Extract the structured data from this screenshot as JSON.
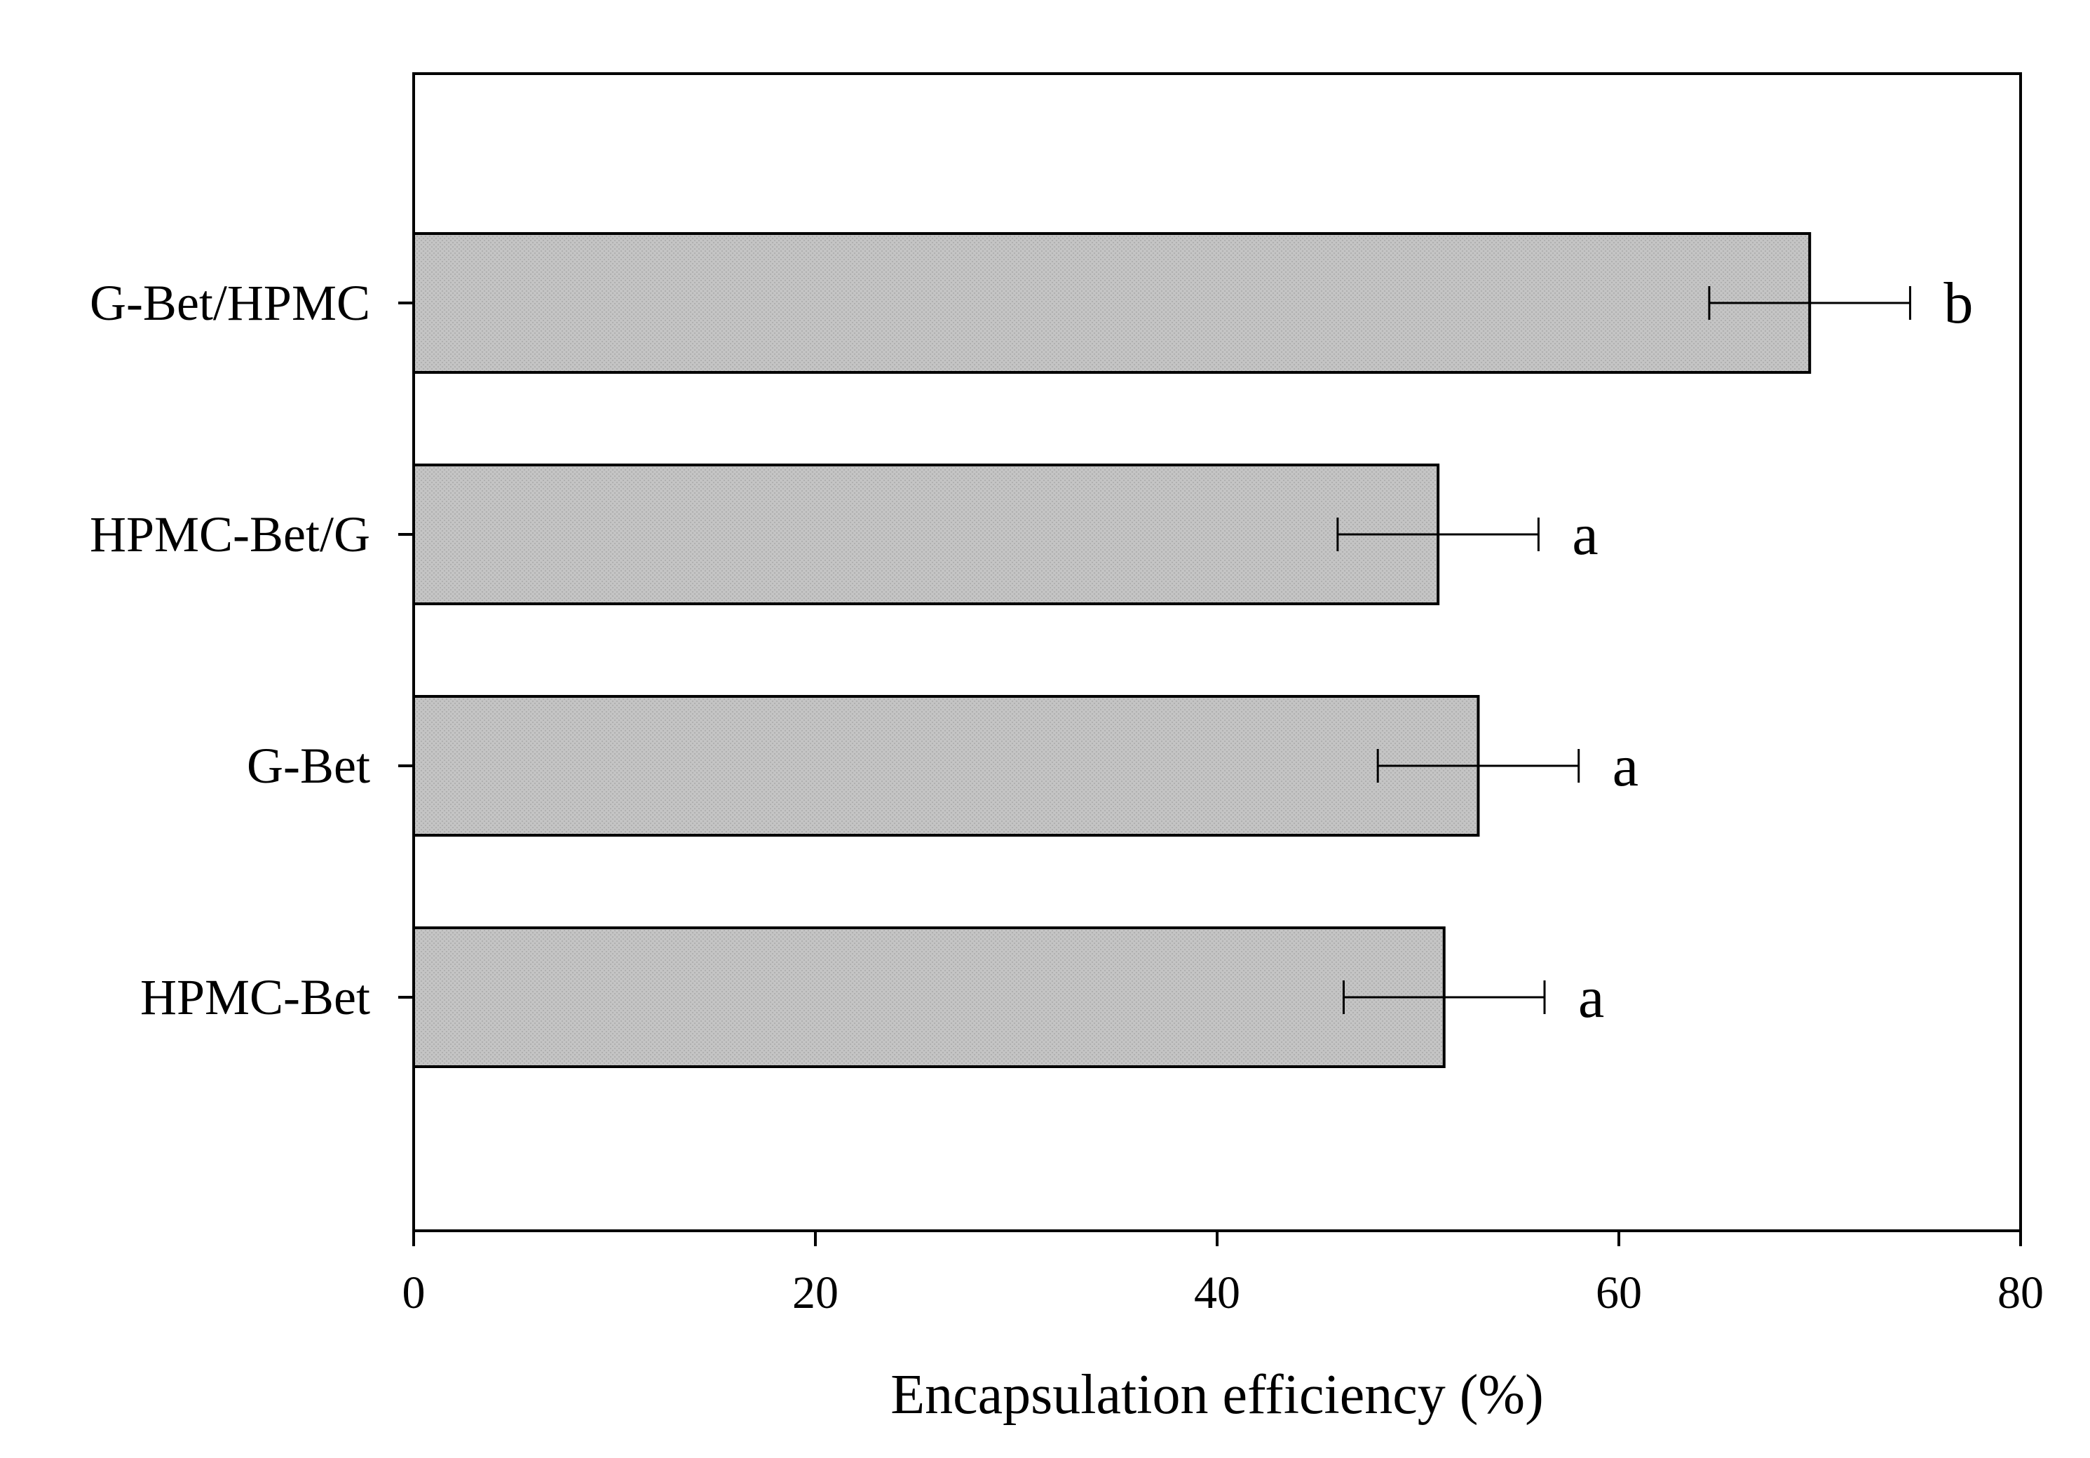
{
  "chart_data": {
    "type": "bar",
    "orientation": "horizontal",
    "title": "",
    "xlabel": "Encapsulation efficiency (%)",
    "ylabel": "",
    "xlim": [
      0,
      80
    ],
    "xticks": [
      0,
      20,
      40,
      60,
      80
    ],
    "xtick_labels": [
      "0",
      "20",
      "40",
      "60",
      "80"
    ],
    "grid": false,
    "legend": "none",
    "categories": [
      "G-Bet/HPMC",
      "HPMC-Bet/G",
      "G-Bet",
      "HPMC-Bet"
    ],
    "values": [
      69.5,
      51.0,
      53.0,
      51.3
    ],
    "error": [
      5.0,
      5.0,
      5.0,
      5.0
    ],
    "significance": [
      "b",
      "a",
      "a",
      "a"
    ],
    "colors": {
      "bar_fill": "#c2c2c2",
      "bar_stroke": "#000000",
      "axis": "#000000"
    }
  }
}
